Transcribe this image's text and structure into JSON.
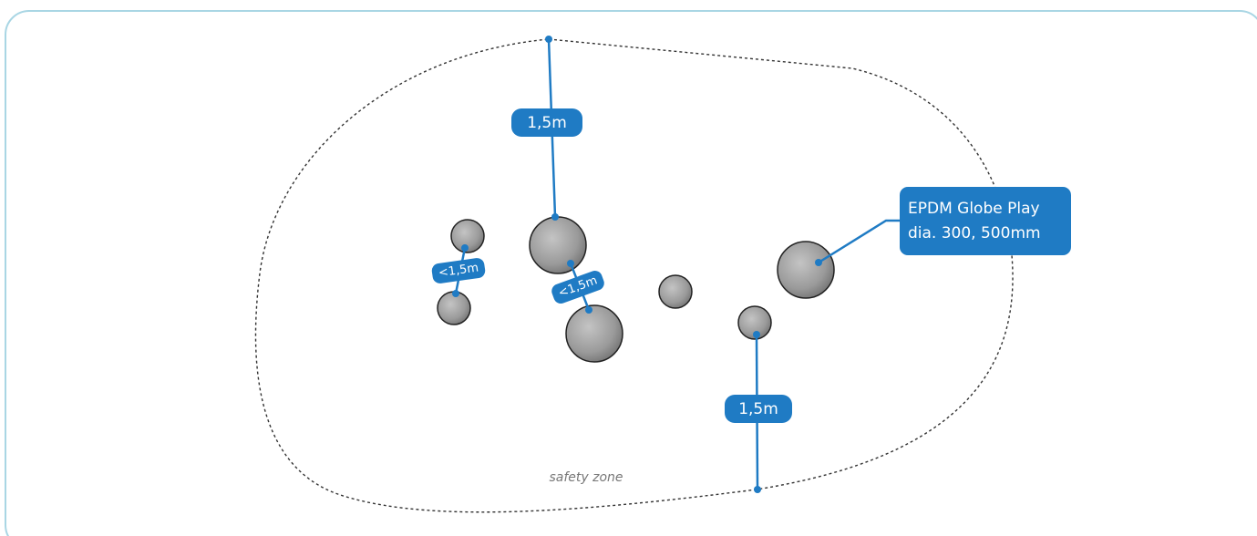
{
  "dimensions": {
    "top": "1,5m",
    "bottom": "1,5m",
    "left_gap": "<1,5m",
    "middle_gap": "<1,5m"
  },
  "callout": {
    "line1": "EPDM Globe Play",
    "line2": "dia. 300, 500mm"
  },
  "zone_label": "safety zone"
}
